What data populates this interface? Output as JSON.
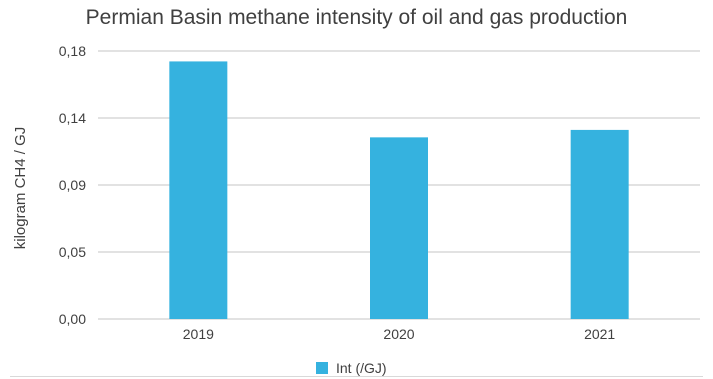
{
  "chart_data": {
    "type": "bar",
    "title": "Permian Basin methane intensity of oil and gas production",
    "xlabel": "",
    "ylabel": "kilogram CH4 / GJ",
    "categories": [
      "2019",
      "2020",
      "2021"
    ],
    "series": [
      {
        "name": "Int (/GJ)",
        "values": [
          0.173,
          0.122,
          0.127
        ],
        "color": "#35b2df"
      }
    ],
    "ytick_labels": [
      "0,00",
      "0,05",
      "0,09",
      "0,14",
      "0,18"
    ],
    "ylim": [
      0,
      0.18
    ],
    "grid": true,
    "legend": "bottom"
  }
}
